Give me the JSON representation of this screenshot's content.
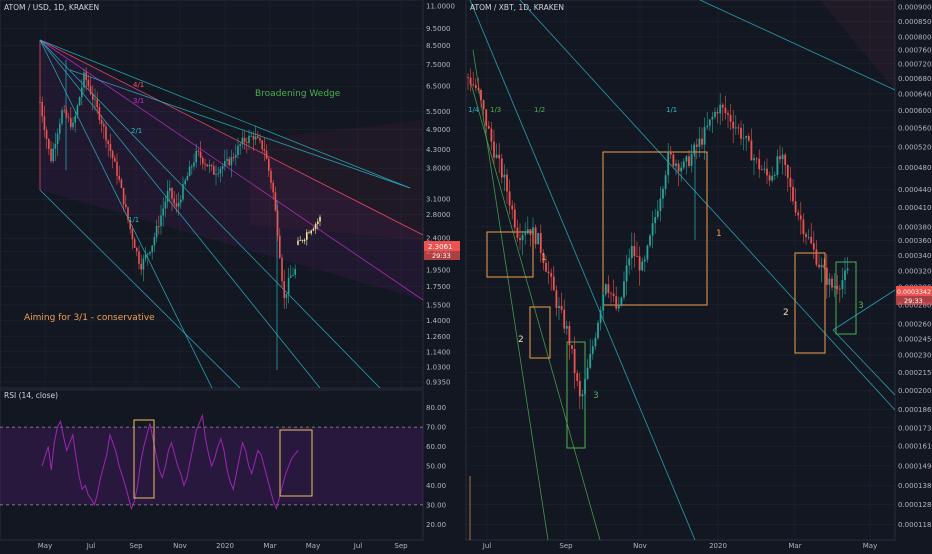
{
  "colors": {
    "background": "#131722",
    "grid": "#1f2430",
    "axis_text": "#b2b5be",
    "up_candle": "#26a69a",
    "down_candle": "#ef5350",
    "fork_cyan": "#2ab7c8",
    "fork_magenta": "#c22ed0",
    "fork_red": "#ff4d6d",
    "box_orange": "#f0a050",
    "box_green": "#4caf50",
    "rsi_line": "#9c27b0",
    "rsi_band": "#7b1fa2",
    "price_tag": "#ef5350",
    "projection": "#f5e6a3"
  },
  "chart_data": [
    {
      "type": "candlestick",
      "title": "ATOM / USD, 1D, KRAKEN",
      "yscale": "log",
      "ylim": [
        0.935,
        11.0
      ],
      "y_ticks": [
        "11.0000",
        "9.5000",
        "8.5000",
        "7.5000",
        "6.5000",
        "5.5000",
        "4.9000",
        "4.3000",
        "3.8000",
        "3.1000",
        "2.8000",
        "2.4000",
        "2.2000",
        "1.9500",
        "1.7500",
        "1.5500",
        "1.4000",
        "1.2600",
        "1.1400",
        "1.0300",
        "0.9350"
      ],
      "x_ticks": [
        "May",
        "Jul",
        "Sep",
        "Nov",
        "2020",
        "Mar",
        "May",
        "Jul",
        "Sep"
      ],
      "last_price": "2.3061",
      "countdown": "29:33",
      "annotations": [
        "Broadening Wedge",
        "Aiming for 3/1 - conservative",
        "4/1",
        "3/1",
        "2/1",
        "1/1"
      ],
      "price_path": [
        {
          "x": "Apr 2019",
          "y": 3.2
        },
        {
          "x": "Apr 2019",
          "y": 6.0
        },
        {
          "x": "May 2019",
          "y": 4.0
        },
        {
          "x": "May 2019",
          "y": 5.5
        },
        {
          "x": "Jun 2019",
          "y": 5.0
        },
        {
          "x": "Jun 2019",
          "y": 7.0
        },
        {
          "x": "Jul 2019",
          "y": 5.2
        },
        {
          "x": "Aug 2019",
          "y": 3.6
        },
        {
          "x": "Aug 2019",
          "y": 2.6
        },
        {
          "x": "Sep 2019",
          "y": 2.0
        },
        {
          "x": "Sep 2019",
          "y": 2.3
        },
        {
          "x": "Oct 2019",
          "y": 2.8
        },
        {
          "x": "Oct 2019",
          "y": 3.3
        },
        {
          "x": "Oct 2019",
          "y": 2.9
        },
        {
          "x": "Nov 2019",
          "y": 3.5
        },
        {
          "x": "Nov 2019",
          "y": 4.2
        },
        {
          "x": "Dec 2019",
          "y": 3.7
        },
        {
          "x": "Jan 2020",
          "y": 4.0
        },
        {
          "x": "Jan 2020",
          "y": 4.5
        },
        {
          "x": "Feb 2020",
          "y": 4.7
        },
        {
          "x": "Feb 2020",
          "y": 4.3
        },
        {
          "x": "Mar 2020",
          "y": 3.3
        },
        {
          "x": "Mar 2020",
          "y": 2.4
        },
        {
          "x": "Mar 2020",
          "y": 1.6
        },
        {
          "x": "Mar 2020",
          "y": 1.85
        },
        {
          "x": "Apr 2020",
          "y": 2.0
        },
        {
          "x": "Apr 2020",
          "y": 2.3
        }
      ],
      "projection_path": [
        {
          "x": "Apr 2020",
          "y": 2.3
        },
        {
          "x": "Apr 2020",
          "y": 2.55
        },
        {
          "x": "May 2020",
          "y": 2.7
        },
        {
          "x": "May 2020",
          "y": 2.9
        },
        {
          "x": "May 2020",
          "y": 2.75
        },
        {
          "x": "Jun 2020",
          "y": 2.6
        }
      ],
      "rsi": {
        "label": "RSI (14, close)",
        "ylim": [
          15,
          85
        ],
        "y_ticks": [
          "80.00",
          "70.00",
          "60.00",
          "50.00",
          "40.00",
          "30.00",
          "20.00"
        ],
        "upper_band": 70,
        "lower_band": 30,
        "values": [
          50,
          55,
          60,
          48,
          62,
          70,
          73,
          65,
          58,
          62,
          66,
          55,
          45,
          38,
          40,
          35,
          33,
          30,
          36,
          44,
          50,
          56,
          66,
          62,
          57,
          50,
          45,
          40,
          34,
          28,
          32,
          40,
          52,
          60,
          66,
          72,
          64,
          56,
          48,
          44,
          50,
          58,
          62,
          56,
          50,
          46,
          40,
          44,
          52,
          60,
          68,
          72,
          76,
          64,
          56,
          50,
          54,
          60,
          64,
          58,
          48,
          42,
          38,
          46,
          54,
          62,
          58,
          50,
          46,
          52,
          58,
          56,
          50,
          44,
          38,
          32,
          28,
          34,
          40,
          46,
          50,
          54,
          56,
          58
        ]
      }
    },
    {
      "type": "candlestick",
      "title": "ATOM / XBT, 1D, KRAKEN",
      "yscale": "log",
      "ylim": [
        0.000115,
        0.00091
      ],
      "y_ticks": [
        "0.0009000",
        "0.0008500",
        "0.0008000",
        "0.0007600",
        "0.0007200",
        "0.0006800",
        "0.0006400",
        "0.0006000",
        "0.0005600",
        "0.0005200",
        "0.0004800",
        "0.0004400",
        "0.0004100",
        "0.0003800",
        "0.0003600",
        "0.0003400",
        "0.0003200",
        "0.0003000",
        "0.0002800",
        "0.0002600",
        "0.0002450",
        "0.0002300",
        "0.0002150",
        "0.0002000",
        "0.0001860",
        "0.0001730",
        "0.0001610",
        "0.0001490",
        "0.0001380",
        "0.0001280",
        "0.0001185"
      ],
      "x_ticks": [
        "Jul",
        "Sep",
        "Nov",
        "2020",
        "Mar",
        "May"
      ],
      "last_price": "0.0003342",
      "countdown": "29:33",
      "annotations": [
        "1/4",
        "1/3",
        "1/2",
        "1/1",
        "1",
        "2",
        "3",
        "1",
        "2",
        "3"
      ],
      "price_path": [
        {
          "x": "Jun 2019",
          "y": 0.00072
        },
        {
          "x": "Jun 2019",
          "y": 0.00065
        },
        {
          "x": "Jul 2019",
          "y": 0.00052
        },
        {
          "x": "Jul 2019",
          "y": 0.00045
        },
        {
          "x": "Jul 2019",
          "y": 0.00037
        },
        {
          "x": "Aug 2019",
          "y": 0.00038
        },
        {
          "x": "Aug 2019",
          "y": 0.00036
        },
        {
          "x": "Aug 2019",
          "y": 0.00032
        },
        {
          "x": "Aug 2019",
          "y": 0.00028
        },
        {
          "x": "Sep 2019",
          "y": 0.00025
        },
        {
          "x": "Sep 2019",
          "y": 0.00019
        },
        {
          "x": "Sep 2019",
          "y": 0.00024
        },
        {
          "x": "Oct 2019",
          "y": 0.00031
        },
        {
          "x": "Oct 2019",
          "y": 0.00027
        },
        {
          "x": "Oct 2019",
          "y": 0.00035
        },
        {
          "x": "Nov 2019",
          "y": 0.00032
        },
        {
          "x": "Nov 2019",
          "y": 0.0004
        },
        {
          "x": "Nov 2019",
          "y": 0.0005
        },
        {
          "x": "Dec 2019",
          "y": 0.00048
        },
        {
          "x": "Dec 2019",
          "y": 0.00054
        },
        {
          "x": "Jan 2020",
          "y": 0.00061
        },
        {
          "x": "Jan 2020",
          "y": 0.00058
        },
        {
          "x": "Jan 2020",
          "y": 0.00054
        },
        {
          "x": "Feb 2020",
          "y": 0.00049
        },
        {
          "x": "Feb 2020",
          "y": 0.00046
        },
        {
          "x": "Feb 2020",
          "y": 0.0005
        },
        {
          "x": "Mar 2020",
          "y": 0.00042
        },
        {
          "x": "Mar 2020",
          "y": 0.00037
        },
        {
          "x": "Mar 2020",
          "y": 0.00033
        },
        {
          "x": "Apr 2020",
          "y": 0.0003
        },
        {
          "x": "Apr 2020",
          "y": 0.00031
        },
        {
          "x": "Apr 2020",
          "y": 0.000334
        }
      ]
    }
  ]
}
